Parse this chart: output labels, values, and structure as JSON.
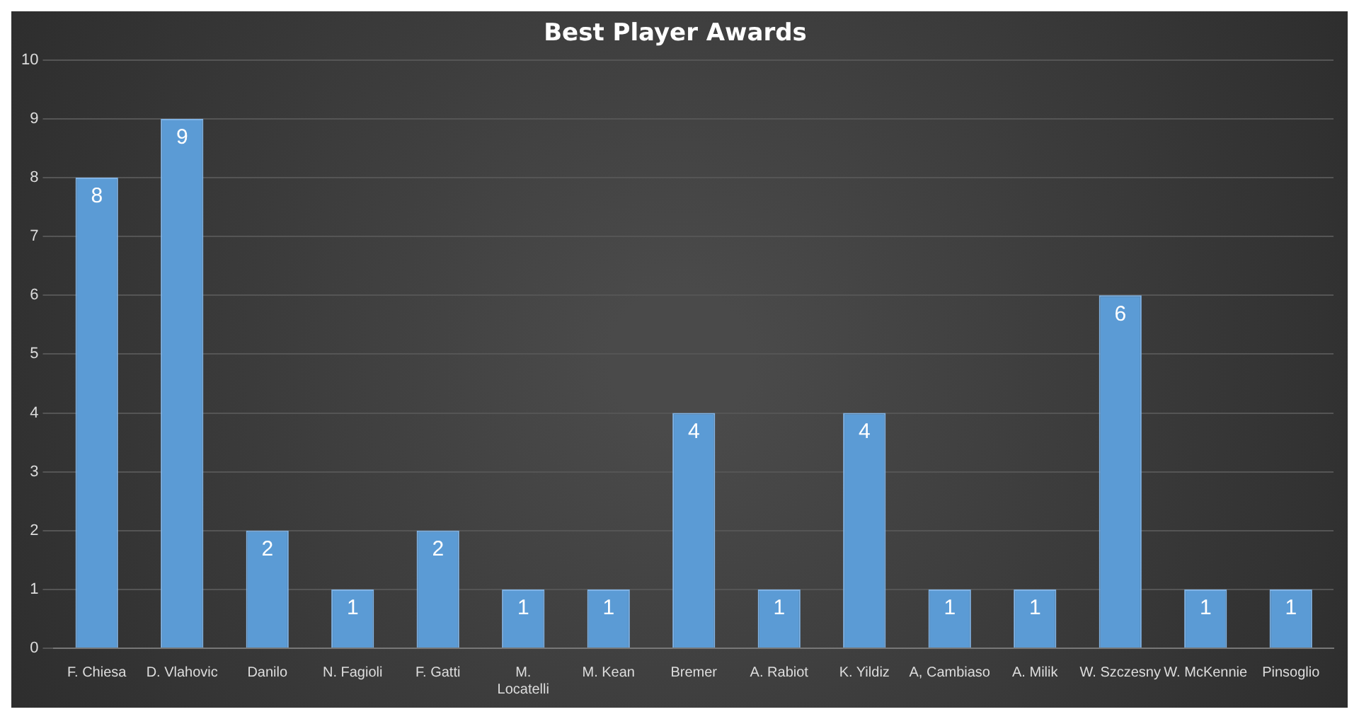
{
  "chart_data": {
    "type": "bar",
    "title": "Best Player Awards",
    "categories": [
      "F. Chiesa",
      "D. Vlahovic",
      "Danilo",
      "N. Fagioli",
      "F. Gatti",
      "M. Locatelli",
      "M. Kean",
      "Bremer",
      "A. Rabiot",
      "K. Yildiz",
      "A, Cambiaso",
      "A. Milik",
      "W. Szczesny",
      "W. McKennie",
      "Pinsoglio"
    ],
    "values": [
      8,
      9,
      2,
      1,
      2,
      1,
      1,
      4,
      1,
      4,
      1,
      1,
      6,
      1,
      1
    ],
    "color": "#5b9bd5",
    "ylim": [
      0,
      10
    ],
    "yticks": [
      0,
      1,
      2,
      3,
      4,
      5,
      6,
      7,
      8,
      9,
      10
    ],
    "grid": "y",
    "data_labels": true,
    "legend": false
  }
}
